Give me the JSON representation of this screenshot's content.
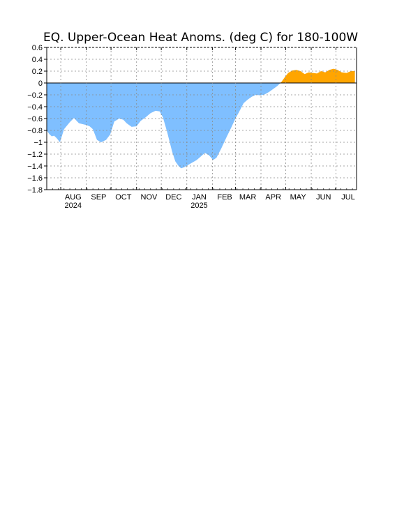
{
  "chart_data": {
    "type": "area",
    "title": "EQ. Upper-Ocean Heat Anoms. (deg C) for 180-100W",
    "xlabel": "",
    "ylabel": "",
    "ylim": [
      -1.8,
      0.6
    ],
    "yticks": [
      0.6,
      0.4,
      0.2,
      0,
      -0.2,
      -0.4,
      -0.6,
      -0.8,
      -1,
      -1.2,
      -1.4,
      -1.6,
      -1.8
    ],
    "ytick_labels": [
      "0.6",
      "0.4",
      "0.2",
      "0",
      "−0.2",
      "−0.4",
      "−0.6",
      "−0.8",
      "−1",
      "−1.2",
      "−1.4",
      "−1.6",
      "−1.8"
    ],
    "xlim": [
      "2024-07-15",
      "2025-07-26"
    ],
    "x_month_ticks": [
      {
        "label": "AUG",
        "date": "2024-08-01",
        "year": "2024"
      },
      {
        "label": "SEP",
        "date": "2024-09-01"
      },
      {
        "label": "OCT",
        "date": "2024-10-01"
      },
      {
        "label": "NOV",
        "date": "2024-11-01"
      },
      {
        "label": "DEC",
        "date": "2024-12-01"
      },
      {
        "label": "JAN",
        "date": "2025-01-01",
        "year": "2025"
      },
      {
        "label": "FEB",
        "date": "2025-02-01"
      },
      {
        "label": "MAR",
        "date": "2025-03-01"
      },
      {
        "label": "APR",
        "date": "2025-04-01"
      },
      {
        "label": "MAY",
        "date": "2025-05-01"
      },
      {
        "label": "JUN",
        "date": "2025-06-01"
      },
      {
        "label": "JUL",
        "date": "2025-07-01"
      }
    ],
    "grid": true,
    "colors": {
      "positive": "#ffa500",
      "negative": "#7fbfff"
    },
    "series": [
      {
        "x": [
          "2024-07-15",
          "2024-07-18",
          "2024-07-21",
          "2024-07-24",
          "2024-07-27",
          "2024-07-31",
          "2024-08-05",
          "2024-08-12",
          "2024-08-17",
          "2024-08-23",
          "2024-09-01",
          "2024-09-05",
          "2024-09-09",
          "2024-09-14",
          "2024-09-19",
          "2024-09-25",
          "2024-09-30",
          "2024-10-05",
          "2024-10-11",
          "2024-10-16",
          "2024-10-20",
          "2024-10-26",
          "2024-11-01",
          "2024-11-06",
          "2024-11-12",
          "2024-11-18",
          "2024-11-24",
          "2024-11-29",
          "2024-12-03",
          "2024-12-08",
          "2024-12-14",
          "2024-12-18",
          "2024-12-22",
          "2024-12-25",
          "2024-12-29",
          "2025-01-03",
          "2025-01-08",
          "2025-01-13",
          "2025-01-18",
          "2025-01-23",
          "2025-01-28",
          "2025-02-02",
          "2025-02-06",
          "2025-02-12",
          "2025-02-18",
          "2025-02-24",
          "2025-03-01",
          "2025-03-05",
          "2025-03-11",
          "2025-03-16",
          "2025-03-21",
          "2025-03-26",
          "2025-04-01",
          "2025-04-06",
          "2025-04-11",
          "2025-04-16",
          "2025-04-21",
          "2025-04-26",
          "2025-04-30",
          "2025-05-04",
          "2025-05-09",
          "2025-05-14",
          "2025-05-19",
          "2025-05-24",
          "2025-05-29",
          "2025-06-03",
          "2025-06-08",
          "2025-06-13",
          "2025-06-18",
          "2025-06-23",
          "2025-06-28",
          "2025-07-03",
          "2025-07-08",
          "2025-07-14",
          "2025-07-19",
          "2025-07-24"
        ],
        "y": [
          -0.8,
          -0.86,
          -0.9,
          -0.89,
          -0.93,
          -1.0,
          -0.78,
          -0.66,
          -0.59,
          -0.68,
          -0.71,
          -0.73,
          -0.78,
          -0.96,
          -1.0,
          -0.96,
          -0.87,
          -0.65,
          -0.6,
          -0.62,
          -0.68,
          -0.74,
          -0.73,
          -0.64,
          -0.58,
          -0.51,
          -0.47,
          -0.48,
          -0.58,
          -0.82,
          -1.15,
          -1.32,
          -1.4,
          -1.44,
          -1.42,
          -1.38,
          -1.34,
          -1.3,
          -1.24,
          -1.18,
          -1.22,
          -1.3,
          -1.26,
          -1.1,
          -0.92,
          -0.75,
          -0.6,
          -0.5,
          -0.34,
          -0.28,
          -0.23,
          -0.2,
          -0.21,
          -0.19,
          -0.15,
          -0.1,
          -0.05,
          0.02,
          0.1,
          0.17,
          0.21,
          0.22,
          0.2,
          0.15,
          0.18,
          0.17,
          0.16,
          0.2,
          0.18,
          0.22,
          0.24,
          0.22,
          0.18,
          0.17,
          0.2,
          0.2
        ]
      }
    ]
  }
}
